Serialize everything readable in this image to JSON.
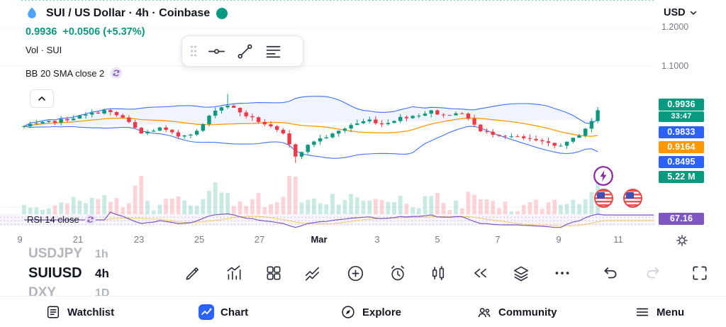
{
  "header": {
    "title": "SUI / US Dollar · 4h · Coinbase",
    "currency": "USD",
    "price": "0.9936",
    "change": "+0.0506 (+5.37%)",
    "vol_label": "Vol · SUI",
    "bb_label": "BB 20 SMA close 2"
  },
  "rsi_label": "RSI 14 close",
  "right_axis": {
    "top_label": "1.2000",
    "mid_label": "1.1000",
    "badges": [
      {
        "text": "0.9936",
        "color": "#089981"
      },
      {
        "text": "33:47",
        "color": "#089981"
      },
      {
        "text": "0.9833",
        "color": "#2962ff"
      },
      {
        "text": "0.9164",
        "color": "#ff9800"
      },
      {
        "text": "0.8495",
        "color": "#2962ff"
      },
      {
        "text": "5.22 M",
        "color": "#089981"
      },
      {
        "text": "67.16",
        "color": "#7e57c2"
      }
    ]
  },
  "time_axis": [
    "9",
    "21",
    "23",
    "25",
    "27",
    "Mar",
    "3",
    "5",
    "7",
    "9",
    "11"
  ],
  "watchlist": [
    {
      "symbol": "USDJPY",
      "tf": "1h"
    },
    {
      "symbol": "SUIUSD",
      "tf": "4h"
    },
    {
      "symbol": "DXY",
      "tf": "1D"
    }
  ],
  "bottom_nav": [
    {
      "label": "Watchlist"
    },
    {
      "label": "Chart"
    },
    {
      "label": "Explore"
    },
    {
      "label": "Community"
    },
    {
      "label": "Menu"
    }
  ],
  "chart_data": {
    "type": "candlestick",
    "symbol": "SUIUSD",
    "interval": "4h",
    "exchange": "Coinbase",
    "title": "SUI / US Dollar · 4h · Coinbase",
    "last_close": 0.9936,
    "change_abs": 0.0506,
    "change_pct": 5.37,
    "ylim": [
      0.72,
      1.01
    ],
    "y_axis_labels": [
      "1.2000",
      "1.1000"
    ],
    "x_axis_labels": [
      "9",
      "21",
      "23",
      "25",
      "27",
      "Mar",
      "3",
      "5",
      "7",
      "9",
      "11"
    ],
    "indicators": {
      "bollinger": {
        "label": "BB 20 SMA close 2",
        "period": 20,
        "mult": 2,
        "upper": 0.9833,
        "basis": 0.9164,
        "lower": 0.8495
      },
      "rsi": {
        "label": "RSI 14 close",
        "period": 14,
        "value": 67.16,
        "band": [
          30,
          70
        ]
      },
      "volume": {
        "label": "Vol · SUI",
        "current": "5.22 M"
      }
    },
    "candles": {
      "count": 95,
      "noise": 0.007,
      "wick": 0.009,
      "anchors": [
        [
          0,
          0.925
        ],
        [
          6,
          0.94
        ],
        [
          10,
          0.952
        ],
        [
          13,
          0.963
        ],
        [
          16,
          0.946
        ],
        [
          19,
          0.908
        ],
        [
          22,
          0.921
        ],
        [
          25,
          0.902
        ],
        [
          28,
          0.913
        ],
        [
          31,
          0.966
        ],
        [
          33,
          0.976
        ],
        [
          36,
          0.951
        ],
        [
          39,
          0.931
        ],
        [
          42,
          0.906
        ],
        [
          44,
          0.856
        ],
        [
          47,
          0.891
        ],
        [
          50,
          0.906
        ],
        [
          53,
          0.929
        ],
        [
          56,
          0.941
        ],
        [
          58,
          0.931
        ],
        [
          61,
          0.946
        ],
        [
          64,
          0.953
        ],
        [
          66,
          0.961
        ],
        [
          68,
          0.951
        ],
        [
          70,
          0.959
        ],
        [
          72,
          0.946
        ],
        [
          74,
          0.913
        ],
        [
          77,
          0.906
        ],
        [
          80,
          0.899
        ],
        [
          83,
          0.891
        ],
        [
          86,
          0.879
        ],
        [
          88,
          0.886
        ],
        [
          90,
          0.906
        ],
        [
          92,
          0.936
        ],
        [
          94,
          0.9936
        ]
      ]
    },
    "colors": {
      "up": "#089981",
      "down": "#f23645",
      "bb_band": "#2962ff",
      "bb_basis": "#ff9800",
      "band_fill": "rgba(41,98,255,0.07)",
      "rsi": "#7e57c2",
      "rsi_ma": "#f0b90b",
      "current_line": "#089981"
    }
  }
}
